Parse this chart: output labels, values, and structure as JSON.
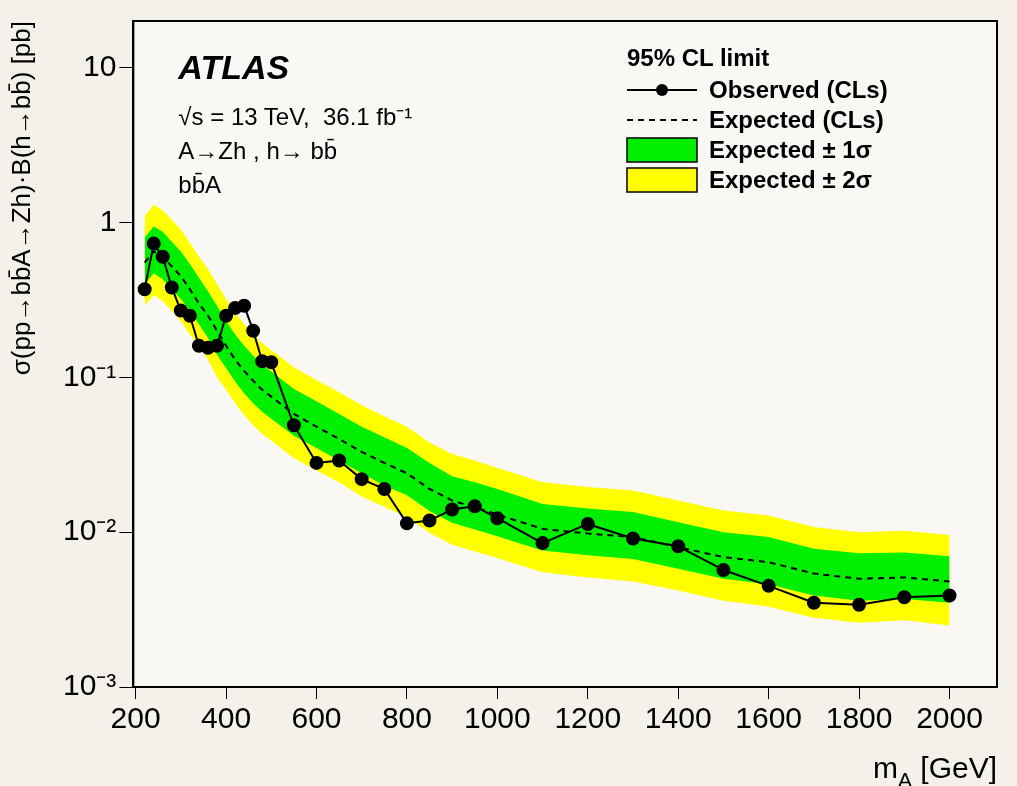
{
  "chart_data": {
    "type": "line",
    "xlabel": "m$_{A}$ [GeV]",
    "ylabel": "σ(pp→bb̄A→Zh)·B(h→bb̄) [pb]",
    "legend_title": "95% CL limit",
    "annotations": [
      "ATLAS",
      "√s = 13 TeV,  36.1 fb⁻¹",
      "A→Zh , h→ bb̄",
      "bb̄A"
    ],
    "x": [
      220,
      240,
      260,
      280,
      300,
      320,
      340,
      360,
      380,
      400,
      420,
      440,
      460,
      480,
      500,
      550,
      600,
      650,
      700,
      750,
      800,
      850,
      900,
      950,
      1000,
      1100,
      1200,
      1300,
      1400,
      1500,
      1600,
      1700,
      1800,
      1900,
      2000
    ],
    "series": [
      {
        "name": "Observed (CLs)",
        "color": "#000000",
        "marker": "circle",
        "line_style": "solid",
        "values": [
          0.37,
          0.73,
          0.6,
          0.38,
          0.27,
          0.25,
          0.16,
          0.155,
          0.16,
          0.25,
          0.28,
          0.29,
          0.2,
          0.127,
          0.125,
          0.049,
          0.028,
          0.029,
          0.022,
          0.019,
          0.0114,
          0.0119,
          0.014,
          0.0147,
          0.0123,
          0.0085,
          0.0113,
          0.0091,
          0.0081,
          0.0057,
          0.0045,
          0.0035,
          0.0034,
          0.0038,
          0.0039
        ]
      },
      {
        "name": "Expected (CLs)",
        "color": "#000000",
        "marker": "none",
        "line_style": "dashed",
        "values": [
          0.55,
          0.65,
          0.6,
          0.52,
          0.45,
          0.37,
          0.3,
          0.25,
          0.2,
          0.16,
          0.13,
          0.11,
          0.095,
          0.083,
          0.075,
          0.058,
          0.048,
          0.04,
          0.033,
          0.028,
          0.024,
          0.019,
          0.016,
          0.0145,
          0.013,
          0.0105,
          0.0098,
          0.0093,
          0.008,
          0.0069,
          0.0064,
          0.0054,
          0.005,
          0.0051,
          0.0048
        ]
      },
      {
        "name": "Expected ± 1σ",
        "color": "#00ee00",
        "values": [
          null,
          null,
          null,
          null,
          null,
          null,
          null,
          null,
          null,
          null,
          null,
          null,
          null,
          null,
          null,
          null,
          null,
          null,
          null,
          null,
          null,
          null,
          null,
          null,
          null,
          null,
          null,
          null,
          null,
          null,
          null,
          null,
          null,
          null,
          null
        ],
        "lower": [
          0.4,
          0.47,
          0.43,
          0.37,
          0.32,
          0.27,
          0.22,
          0.18,
          0.14,
          0.115,
          0.094,
          0.079,
          0.068,
          0.06,
          0.054,
          0.042,
          0.035,
          0.029,
          0.024,
          0.02,
          0.0173,
          0.0137,
          0.0115,
          0.0104,
          0.0094,
          0.0076,
          0.0071,
          0.0067,
          0.0058,
          0.005,
          0.0046,
          0.0039,
          0.0036,
          0.0037,
          0.0035
        ],
        "upper": [
          0.8,
          0.94,
          0.87,
          0.75,
          0.65,
          0.54,
          0.44,
          0.36,
          0.29,
          0.23,
          0.19,
          0.16,
          0.138,
          0.12,
          0.109,
          0.084,
          0.07,
          0.058,
          0.048,
          0.041,
          0.035,
          0.028,
          0.023,
          0.021,
          0.019,
          0.0152,
          0.0142,
          0.0135,
          0.0116,
          0.01,
          0.0093,
          0.0078,
          0.0073,
          0.0074,
          0.007
        ]
      },
      {
        "name": "Expected ± 2σ",
        "color": "#ffff00",
        "values": [
          null,
          null,
          null,
          null,
          null,
          null,
          null,
          null,
          null,
          null,
          null,
          null,
          null,
          null,
          null,
          null,
          null,
          null,
          null,
          null,
          null,
          null,
          null,
          null,
          null,
          null,
          null,
          null,
          null,
          null,
          null,
          null,
          null,
          null,
          null
        ],
        "lower": [
          0.29,
          0.34,
          0.31,
          0.27,
          0.23,
          0.19,
          0.16,
          0.13,
          0.1,
          0.083,
          0.068,
          0.057,
          0.049,
          0.043,
          0.039,
          0.03,
          0.025,
          0.021,
          0.017,
          0.0146,
          0.0125,
          0.0099,
          0.0083,
          0.0075,
          0.0068,
          0.0055,
          0.0051,
          0.0048,
          0.0042,
          0.0036,
          0.0033,
          0.0028,
          0.0026,
          0.0027,
          0.0025
        ],
        "upper": [
          1.1,
          1.3,
          1.2,
          1.04,
          0.9,
          0.74,
          0.6,
          0.5,
          0.4,
          0.32,
          0.26,
          0.22,
          0.19,
          0.166,
          0.15,
          0.116,
          0.096,
          0.08,
          0.066,
          0.056,
          0.048,
          0.038,
          0.032,
          0.029,
          0.026,
          0.021,
          0.0196,
          0.0186,
          0.016,
          0.0138,
          0.0128,
          0.0108,
          0.01,
          0.0102,
          0.0096
        ]
      }
    ],
    "xlim": [
      195,
      2105
    ],
    "xticks": [
      200,
      400,
      600,
      800,
      1000,
      1200,
      1400,
      1600,
      1800,
      2000
    ],
    "ylim": [
      0.001,
      20
    ],
    "yticks": [
      {
        "value": 0.001,
        "label": "10⁻³"
      },
      {
        "value": 0.01,
        "label": "10⁻²"
      },
      {
        "value": 0.1,
        "label": "10⁻¹"
      },
      1,
      10
    ],
    "log": "y",
    "grid": false,
    "legend": "top right"
  }
}
